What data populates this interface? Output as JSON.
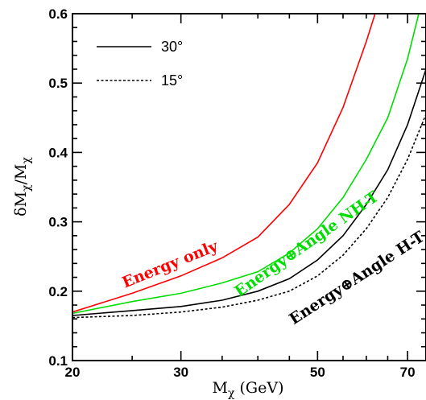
{
  "chart_data": {
    "type": "line",
    "title": "",
    "xlabel": "M",
    "xlabel_sub": "χ",
    "xlabel_unit": " (GeV)",
    "ylabel_parts": [
      "δM",
      "χ",
      "/M",
      "χ"
    ],
    "xlim": [
      20,
      75
    ],
    "ylim": [
      0.1,
      0.6
    ],
    "xscale": "log",
    "x_ticks": [
      20,
      30,
      50,
      70
    ],
    "x_ticks_minor": [
      25,
      35,
      40,
      45,
      55,
      60,
      65,
      75
    ],
    "y_ticks": [
      0.1,
      0.2,
      0.3,
      0.4,
      0.5,
      0.6
    ],
    "y_tick_labels": [
      "0.1",
      "0.2",
      "0.3",
      "0.4",
      "0.5",
      "0.6"
    ],
    "legend": {
      "placement": "top-left",
      "entries": [
        {
          "label": "30°",
          "style": "solid"
        },
        {
          "label": "15°",
          "style": "dotted"
        }
      ]
    },
    "series": [
      {
        "id": "energy-only",
        "color": "#ff0000",
        "style": "solid",
        "x": [
          20,
          25,
          30,
          35,
          40,
          45,
          50,
          55,
          60,
          62
        ],
        "y": [
          0.17,
          0.197,
          0.222,
          0.248,
          0.278,
          0.325,
          0.385,
          0.465,
          0.56,
          0.6
        ]
      },
      {
        "id": "energy-angle-nht",
        "color": "#00dd00",
        "style": "solid",
        "x": [
          20,
          25,
          30,
          35,
          40,
          45,
          50,
          55,
          60,
          65,
          70,
          73
        ],
        "y": [
          0.168,
          0.185,
          0.197,
          0.212,
          0.228,
          0.255,
          0.29,
          0.335,
          0.39,
          0.45,
          0.535,
          0.6
        ]
      },
      {
        "id": "energy-angle-ht-30",
        "color": "#000000",
        "style": "solid",
        "x": [
          20,
          25,
          30,
          35,
          40,
          45,
          50,
          55,
          60,
          65,
          70,
          75
        ],
        "y": [
          0.165,
          0.172,
          0.178,
          0.187,
          0.2,
          0.218,
          0.245,
          0.28,
          0.325,
          0.375,
          0.44,
          0.52
        ]
      },
      {
        "id": "energy-angle-ht-15",
        "color": "#000000",
        "style": "dotted",
        "x": [
          20,
          25,
          30,
          35,
          40,
          45,
          50,
          55,
          60,
          65,
          70,
          75
        ],
        "y": [
          0.162,
          0.165,
          0.17,
          0.177,
          0.187,
          0.2,
          0.222,
          0.252,
          0.29,
          0.335,
          0.39,
          0.455
        ]
      }
    ],
    "annotations": [
      {
        "id": "label-energy-only",
        "text": "Energy only",
        "color": "#ff0000",
        "at_x": 29,
        "at_y": 0.232,
        "angle": -22
      },
      {
        "id": "label-energy-angle-nht",
        "text": "Energy⊕Angle NH-T",
        "color": "#00dd00",
        "at_x": 48.5,
        "at_y": 0.262,
        "angle": -35
      },
      {
        "id": "label-energy-angle-ht",
        "text": "Energy⊕Angle H-T",
        "color": "#000000",
        "at_x": 58.5,
        "at_y": 0.213,
        "angle": -33
      }
    ]
  }
}
